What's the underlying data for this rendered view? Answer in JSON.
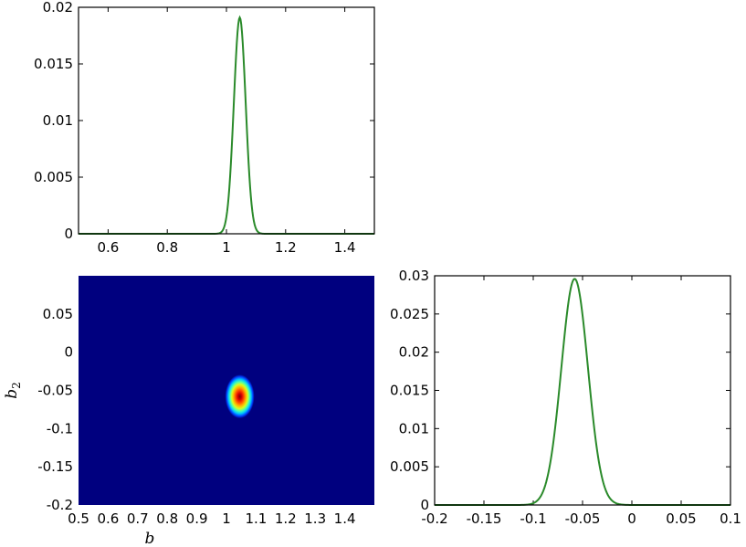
{
  "chart_data": [
    {
      "type": "line",
      "panel": "top-left-marginal",
      "xlabel": "",
      "ylabel": "",
      "xlim": [
        0.5,
        1.5
      ],
      "ylim": [
        0,
        0.02
      ],
      "x_ticks": [
        0.6,
        0.8,
        1.0,
        1.2,
        1.4
      ],
      "x_tick_labels": [
        "0.6",
        "0.8",
        "1",
        "1.2",
        "1.4"
      ],
      "y_ticks": [
        0,
        0.005,
        0.01,
        0.015,
        0.02
      ],
      "y_tick_labels": [
        "0",
        "0.005",
        "0.01",
        "0.015",
        "0.02"
      ],
      "series": [
        {
          "color": "#2a8a2a",
          "peak_x": 1.045,
          "peak_y": 0.0191,
          "sigma": 0.02
        }
      ]
    },
    {
      "type": "heatmap",
      "panel": "bottom-left-joint",
      "xlabel": "b",
      "ylabel": "b2",
      "xlim": [
        0.5,
        1.5
      ],
      "ylim": [
        -0.2,
        0.1
      ],
      "x_ticks": [
        0.5,
        0.6,
        0.7,
        0.8,
        0.9,
        1.0,
        1.1,
        1.2,
        1.3,
        1.4
      ],
      "x_tick_labels": [
        "0.5",
        "0.6",
        "0.7",
        "0.8",
        "0.9",
        "1",
        "1.1",
        "1.2",
        "1.3",
        "1.4"
      ],
      "y_ticks": [
        -0.2,
        -0.15,
        -0.1,
        -0.05,
        0,
        0.05
      ],
      "y_tick_labels": [
        "-0.2",
        "-0.15",
        "-0.1",
        "-0.05",
        "0",
        "0.05"
      ],
      "background_color": "#00007f",
      "peak": {
        "x": 1.045,
        "y": -0.058
      }
    },
    {
      "type": "line",
      "panel": "bottom-right-marginal",
      "xlabel": "",
      "ylabel": "",
      "xlim": [
        -0.2,
        0.1
      ],
      "ylim": [
        0,
        0.03
      ],
      "x_ticks": [
        -0.2,
        -0.15,
        -0.1,
        -0.05,
        0,
        0.05,
        0.1
      ],
      "x_tick_labels": [
        "-0.2",
        "-0.15",
        "-0.1",
        "-0.05",
        "0",
        "0.05",
        "0.1"
      ],
      "y_ticks": [
        0,
        0.005,
        0.01,
        0.015,
        0.02,
        0.025,
        0.03
      ],
      "y_tick_labels": [
        "0",
        "0.005",
        "0.01",
        "0.015",
        "0.02",
        "0.025",
        "0.03"
      ],
      "series": [
        {
          "color": "#2a8a2a",
          "peak_x": -0.058,
          "peak_y": 0.0296,
          "sigma": 0.0135
        }
      ]
    }
  ]
}
